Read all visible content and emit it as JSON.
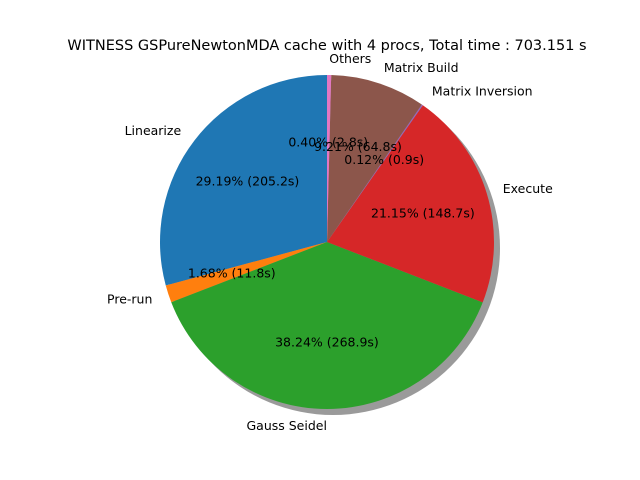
{
  "chart_data": {
    "type": "pie",
    "title": "WITNESS GSPureNewtonMDA cache with 4 procs, Total time : 703.151 s",
    "start_angle_deg": 90,
    "direction": "counterclockwise",
    "shadow": true,
    "slices": [
      {
        "label": "Linearize",
        "percent": 29.19,
        "seconds": 205.2,
        "color": "#1f77b4",
        "pct_text": "29.19%  (205.2s)"
      },
      {
        "label": "Pre-run",
        "percent": 1.68,
        "seconds": 11.8,
        "color": "#ff7f0e",
        "pct_text": "1.68%  (11.8s)"
      },
      {
        "label": "Gauss Seidel",
        "percent": 38.24,
        "seconds": 268.9,
        "color": "#2ca02c",
        "pct_text": "38.24%  (268.9s)"
      },
      {
        "label": "Execute",
        "percent": 21.15,
        "seconds": 148.7,
        "color": "#d62728",
        "pct_text": "21.15%  (148.7s)"
      },
      {
        "label": "Matrix Inversion",
        "percent": 0.12,
        "seconds": 0.9,
        "color": "#9467bd",
        "pct_text": "0.12%  (0.9s)"
      },
      {
        "label": "Matrix Build",
        "percent": 9.21,
        "seconds": 64.8,
        "color": "#8c564b",
        "pct_text": "9.21%  (64.8s)"
      },
      {
        "label": "Others",
        "percent": 0.4,
        "seconds": 2.8,
        "color": "#e377c2",
        "pct_text": "0.40%  (2.8s)"
      }
    ]
  }
}
